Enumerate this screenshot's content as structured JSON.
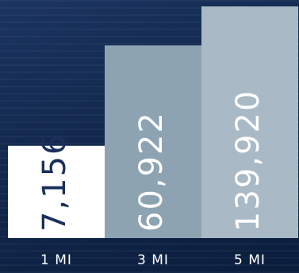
{
  "chart_data": {
    "type": "bar",
    "categories": [
      "1 MI",
      "3 MI",
      "5 MI"
    ],
    "values": [
      7156,
      60922,
      139920
    ],
    "value_labels": [
      "7,156",
      "60,922",
      "139,920"
    ],
    "scale": "log",
    "ylim": [
      1000,
      150000
    ],
    "grid": false,
    "legend": "none",
    "colors": {
      "background": "#0f2346",
      "bars": [
        "#ffffff",
        "#8da3b2",
        "#a9b9c5"
      ],
      "value_text": [
        "#1a2f5c",
        "#ffffff",
        "#ffffff"
      ],
      "axis_text": "#ffffff"
    }
  }
}
